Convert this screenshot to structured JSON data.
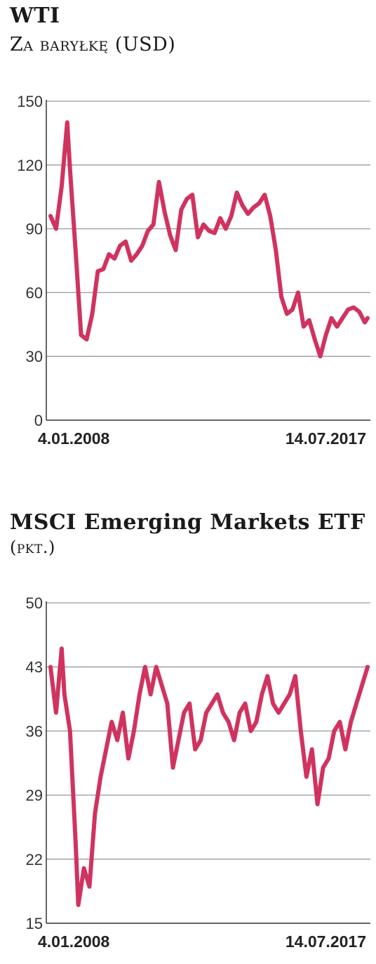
{
  "chart_data": [
    {
      "type": "line",
      "title": "WTI",
      "subtitle": "Za baryłkę (USD)",
      "xlabel": "",
      "ylabel": "",
      "ylim": [
        0,
        150
      ],
      "yticks": [
        0,
        30,
        60,
        90,
        120,
        150
      ],
      "xtick_labels": [
        "4.01.2008",
        "14.07.2017"
      ],
      "grid": true,
      "color": "#d0335f",
      "series": [
        {
          "x": [
            "2008-01",
            "2008-03",
            "2008-05",
            "2008-07",
            "2008-08",
            "2008-10",
            "2008-12",
            "2009-02",
            "2009-04",
            "2009-06",
            "2009-08",
            "2009-10",
            "2009-12",
            "2010-02",
            "2010-04",
            "2010-06",
            "2010-08",
            "2010-10",
            "2010-12",
            "2011-02",
            "2011-04",
            "2011-06",
            "2011-08",
            "2011-10",
            "2011-12",
            "2012-02",
            "2012-04",
            "2012-06",
            "2012-08",
            "2012-10",
            "2012-12",
            "2013-02",
            "2013-04",
            "2013-06",
            "2013-08",
            "2013-10",
            "2013-12",
            "2014-02",
            "2014-04",
            "2014-06",
            "2014-08",
            "2014-10",
            "2014-12",
            "2015-02",
            "2015-04",
            "2015-06",
            "2015-08",
            "2015-10",
            "2015-12",
            "2016-02",
            "2016-04",
            "2016-06",
            "2016-08",
            "2016-10",
            "2016-12",
            "2017-02",
            "2017-04",
            "2017-06",
            "2017-07"
          ],
          "values": [
            96,
            90,
            110,
            140,
            118,
            80,
            40,
            38,
            50,
            70,
            71,
            78,
            76,
            82,
            84,
            75,
            78,
            82,
            89,
            92,
            112,
            98,
            87,
            80,
            99,
            104,
            106,
            86,
            92,
            89,
            88,
            95,
            90,
            96,
            107,
            101,
            97,
            100,
            102,
            106,
            96,
            80,
            58,
            50,
            52,
            60,
            44,
            47,
            38,
            30,
            40,
            48,
            44,
            48,
            52,
            53,
            51,
            46,
            48
          ]
        }
      ]
    },
    {
      "type": "line",
      "title": "MSCI Emerging Markets ETF",
      "unit_label": "(pkt.)",
      "xlabel": "",
      "ylabel": "",
      "ylim": [
        15,
        50
      ],
      "yticks": [
        15,
        22,
        29,
        36,
        43,
        50
      ],
      "xtick_labels": [
        "4.01.2008",
        "14.07.2017"
      ],
      "grid": true,
      "color": "#d0335f",
      "series": [
        {
          "x": [
            "2008-01",
            "2008-03",
            "2008-05",
            "2008-06",
            "2008-08",
            "2008-10",
            "2008-11",
            "2009-01",
            "2009-03",
            "2009-05",
            "2009-07",
            "2009-09",
            "2009-11",
            "2010-01",
            "2010-03",
            "2010-05",
            "2010-07",
            "2010-09",
            "2010-11",
            "2011-01",
            "2011-03",
            "2011-05",
            "2011-07",
            "2011-09",
            "2011-11",
            "2012-01",
            "2012-03",
            "2012-05",
            "2012-07",
            "2012-09",
            "2012-11",
            "2013-01",
            "2013-03",
            "2013-05",
            "2013-07",
            "2013-09",
            "2013-11",
            "2014-01",
            "2014-03",
            "2014-05",
            "2014-07",
            "2014-09",
            "2014-11",
            "2015-01",
            "2015-03",
            "2015-05",
            "2015-07",
            "2015-09",
            "2015-11",
            "2016-01",
            "2016-03",
            "2016-05",
            "2016-07",
            "2016-09",
            "2016-11",
            "2017-01",
            "2017-03",
            "2017-05",
            "2017-07"
          ],
          "values": [
            43,
            38,
            45,
            40,
            36,
            24,
            17,
            21,
            19,
            27,
            31,
            34,
            37,
            35,
            38,
            33,
            36,
            40,
            43,
            40,
            43,
            41,
            39,
            32,
            35,
            38,
            39,
            34,
            35,
            38,
            39,
            40,
            38,
            37,
            35,
            38,
            39,
            36,
            37,
            40,
            42,
            39,
            38,
            39,
            40,
            42,
            36,
            31,
            34,
            28,
            32,
            33,
            36,
            37,
            34,
            37,
            39,
            41,
            43
          ]
        }
      ]
    }
  ]
}
